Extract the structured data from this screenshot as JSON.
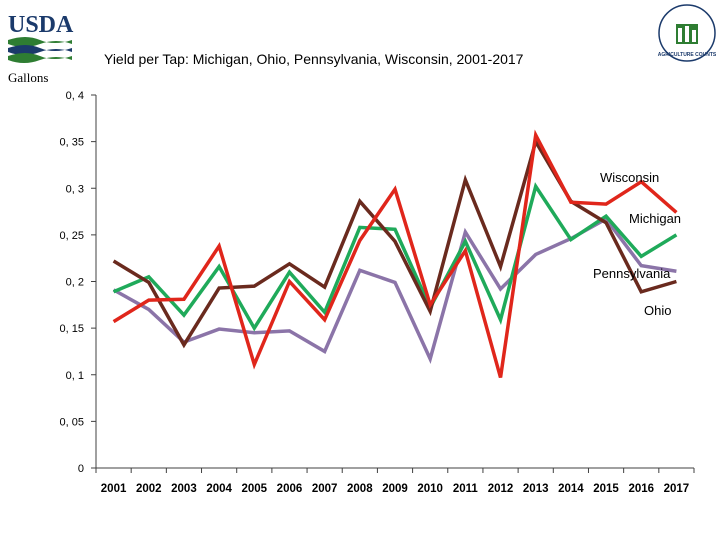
{
  "header": {
    "logo_text": "USDA",
    "seal_text": "AGRICULTURE COUNTS",
    "title": "Yield per Tap:  Michigan, Ohio, Pennsylvania, Wisconsin, 2001-2017",
    "unit": "Gallons"
  },
  "colors": {
    "usda_blue": "#1b3a6b",
    "usda_green": "#2e7d32",
    "michigan": "#1faa5a",
    "ohio": "#6a2a1e",
    "pennsylvania": "#8b74a8",
    "wisconsin": "#e0261b",
    "axis": "#404040"
  },
  "chart_data": {
    "type": "line",
    "title": "Yield per Tap:  Michigan, Ohio, Pennsylvania, Wisconsin, 2001-2017",
    "ylabel": "Gallons",
    "xlabel": "",
    "categories": [
      "2001",
      "2002",
      "2003",
      "2004",
      "2005",
      "2006",
      "2007",
      "2008",
      "2009",
      "2010",
      "2011",
      "2012",
      "2013",
      "2014",
      "2015",
      "2016",
      "2017"
    ],
    "y_ticks": [
      "0",
      "0, 05",
      "0, 1",
      "0, 15",
      "0, 2",
      "0, 25",
      "0, 3",
      "0, 35",
      "0, 4"
    ],
    "ylim": [
      0,
      0.4
    ],
    "grid": false,
    "series": [
      {
        "name": "Wisconsin",
        "color": "#e0261b",
        "values": [
          0.157,
          0.18,
          0.181,
          0.238,
          0.111,
          0.2,
          0.159,
          0.244,
          0.299,
          0.175,
          0.233,
          0.097,
          0.357,
          0.285,
          0.283,
          0.307,
          0.274
        ]
      },
      {
        "name": "Michigan",
        "color": "#1faa5a",
        "values": [
          0.189,
          0.205,
          0.164,
          0.216,
          0.15,
          0.21,
          0.167,
          0.258,
          0.256,
          0.172,
          0.243,
          0.159,
          0.302,
          0.245,
          0.27,
          0.227,
          0.25
        ]
      },
      {
        "name": "Pennsylvania",
        "color": "#8b74a8",
        "values": [
          0.191,
          0.17,
          0.135,
          0.149,
          0.145,
          0.147,
          0.125,
          0.212,
          0.199,
          0.117,
          0.253,
          0.192,
          0.229,
          0.246,
          0.267,
          0.217,
          0.211
        ]
      },
      {
        "name": "Ohio",
        "color": "#6a2a1e",
        "values": [
          0.222,
          0.199,
          0.132,
          0.193,
          0.195,
          0.219,
          0.194,
          0.286,
          0.243,
          0.168,
          0.309,
          0.216,
          0.35,
          0.286,
          0.263,
          0.189,
          0.2
        ]
      }
    ],
    "annotations": [
      "Wisconsin",
      "Michigan",
      "Pennsylvania",
      "Ohio"
    ]
  }
}
